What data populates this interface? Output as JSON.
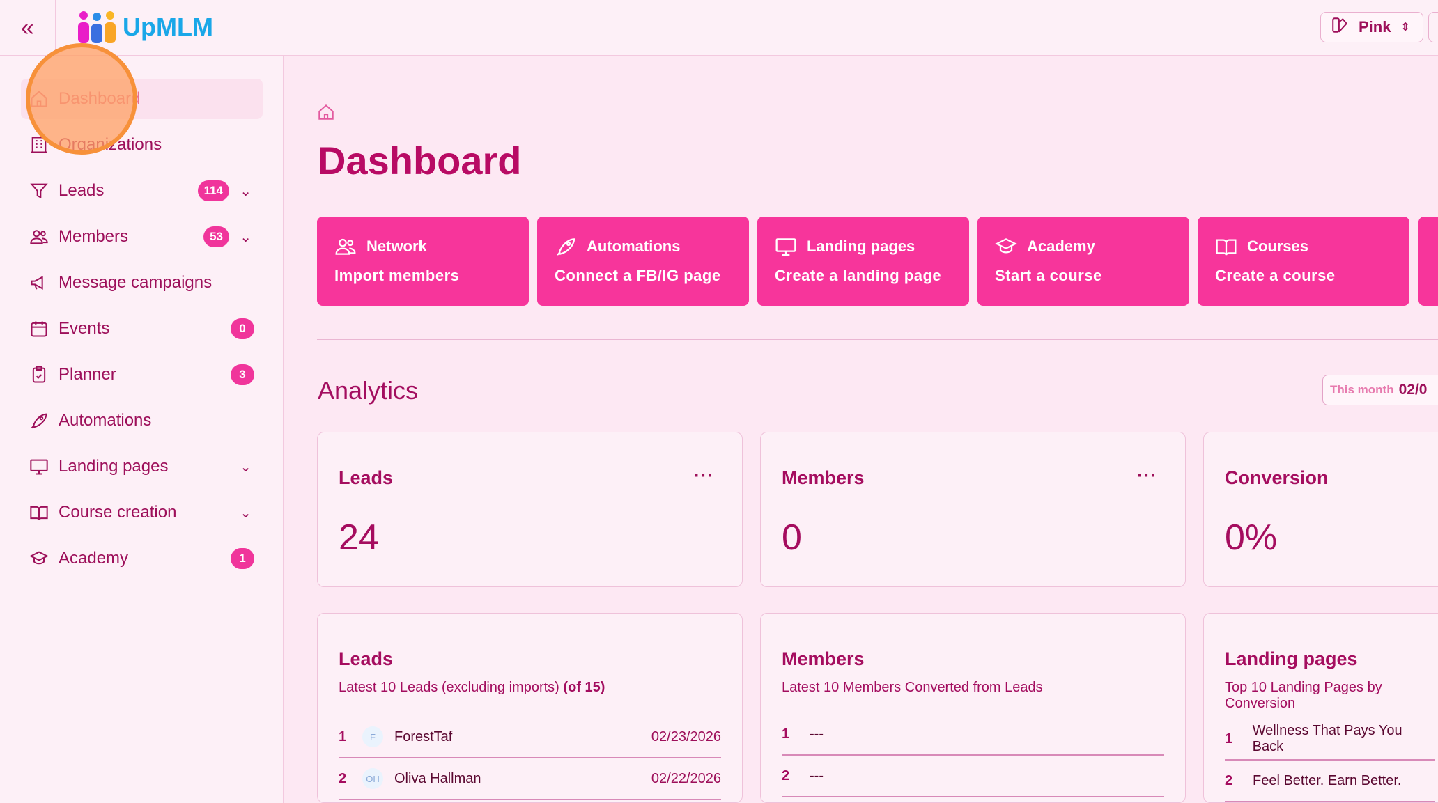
{
  "header": {
    "brand": "UpMLM",
    "theme": "Pink"
  },
  "sidebar": {
    "items": [
      {
        "label": "Dashboard",
        "icon": "home-icon",
        "active": true
      },
      {
        "label": "Organizations",
        "icon": "building-icon"
      },
      {
        "label": "Leads",
        "icon": "funnel-icon",
        "badge": "114",
        "chevron": true
      },
      {
        "label": "Members",
        "icon": "users-icon",
        "badge": "53",
        "chevron": true
      },
      {
        "label": "Message campaigns",
        "icon": "megaphone-icon"
      },
      {
        "label": "Events",
        "icon": "calendar-icon",
        "badge": "0"
      },
      {
        "label": "Planner",
        "icon": "clipboard-icon",
        "badge": "3"
      },
      {
        "label": "Automations",
        "icon": "rocket-icon"
      },
      {
        "label": "Landing pages",
        "icon": "monitor-icon",
        "chevron": true
      },
      {
        "label": "Course creation",
        "icon": "book-icon",
        "chevron": true
      },
      {
        "label": "Academy",
        "icon": "graduation-cap-icon",
        "badge": "1"
      }
    ]
  },
  "page": {
    "title": "Dashboard"
  },
  "actions": [
    {
      "title": "Network",
      "sub": "Import members",
      "icon": "users-icon"
    },
    {
      "title": "Automations",
      "sub": "Connect a FB/IG page",
      "icon": "rocket-icon"
    },
    {
      "title": "Landing pages",
      "sub": "Create a landing page",
      "icon": "monitor-icon"
    },
    {
      "title": "Academy",
      "sub": "Start a course",
      "icon": "graduation-cap-icon"
    },
    {
      "title": "Courses",
      "sub": "Create a course",
      "icon": "book-icon"
    }
  ],
  "analytics": {
    "title": "Analytics",
    "period_label": "This month",
    "period_value": "02/0",
    "stats": [
      {
        "title": "Leads",
        "value": "24"
      },
      {
        "title": "Members",
        "value": "0"
      },
      {
        "title": "Conversion",
        "value": "0%"
      }
    ]
  },
  "lists": {
    "leads": {
      "title": "Leads",
      "sub": "Latest 10 Leads (excluding imports)",
      "count": "(of 15)",
      "rows": [
        {
          "n": "1",
          "initials": "F",
          "name": "ForestTaf",
          "date": "02/23/2026"
        },
        {
          "n": "2",
          "initials": "OH",
          "name": "Oliva Hallman",
          "date": "02/22/2026"
        }
      ]
    },
    "members": {
      "title": "Members",
      "sub": "Latest 10 Members Converted from Leads",
      "rows": [
        {
          "n": "1",
          "name": "---"
        },
        {
          "n": "2",
          "name": "---"
        }
      ]
    },
    "landing": {
      "title": "Landing pages",
      "sub": "Top 10 Landing Pages by Conversion",
      "rows": [
        {
          "n": "1",
          "name": "Wellness That Pays You Back"
        },
        {
          "n": "2",
          "name": "Feel Better. Earn Better."
        }
      ]
    }
  },
  "colors": {
    "accent": "#f7359b",
    "text": "#9d0f5a",
    "background": "#fde8f3"
  }
}
